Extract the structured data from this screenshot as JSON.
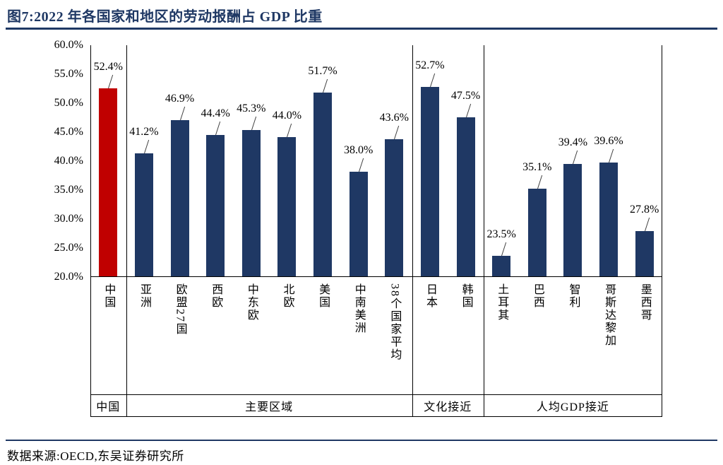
{
  "title": "图7:2022 年各国家和地区的劳动报酬占 GDP 比重",
  "source": "数据来源:OECD,东吴证券研究所",
  "chart_data": {
    "type": "bar",
    "title": "2022 年各国家和地区的劳动报酬占 GDP 比重",
    "xlabel": "",
    "ylabel": "",
    "ylim": [
      20,
      60
    ],
    "grid": false,
    "legend": false,
    "y_ticks": [
      "60.0%",
      "55.0%",
      "50.0%",
      "45.0%",
      "40.0%",
      "35.0%",
      "30.0%",
      "25.0%",
      "20.0%"
    ],
    "categories": [
      "中国",
      "亚洲",
      "欧盟27国",
      "西欧",
      "中东欧",
      "北欧",
      "美国",
      "中南美洲",
      "38个国家平均",
      "日本",
      "韩国",
      "土耳其",
      "巴西",
      "智利",
      "哥斯达黎加",
      "墨西哥"
    ],
    "values": [
      52.4,
      41.2,
      46.9,
      44.4,
      45.3,
      44.0,
      51.7,
      38.0,
      43.6,
      52.7,
      47.5,
      23.5,
      35.1,
      39.4,
      39.6,
      27.8
    ],
    "labels": [
      "52.4%",
      "41.2%",
      "46.9%",
      "44.4%",
      "45.3%",
      "44.0%",
      "51.7%",
      "38.0%",
      "43.6%",
      "52.7%",
      "47.5%",
      "23.5%",
      "35.1%",
      "39.4%",
      "39.6%",
      "27.8%"
    ],
    "groups": [
      {
        "label": "中国",
        "span": 1
      },
      {
        "label": "主要区域",
        "span": 8
      },
      {
        "label": "文化接近",
        "span": 2
      },
      {
        "label": "人均GDP接近",
        "span": 5
      }
    ],
    "colors": {
      "default": "#1f3864",
      "highlight": "#c00000"
    },
    "highlight_index": 0
  }
}
